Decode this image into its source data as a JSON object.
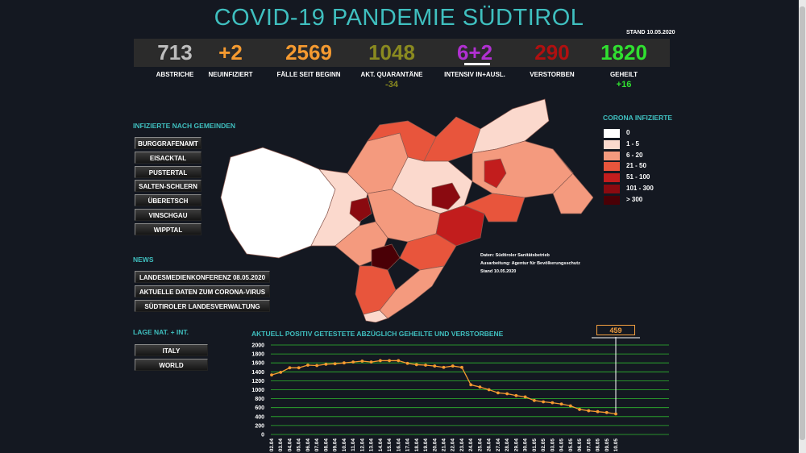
{
  "header": {
    "title": "COVID-19 PANDEMIE SÜDTIROL",
    "stand": "STAND 10.05.2020"
  },
  "stats": [
    {
      "value": "713",
      "label": "ABSTRICHE",
      "sub": "",
      "color": "#bdbdbd"
    },
    {
      "value": "+2",
      "label": "NEUINFIZIERT",
      "sub": "",
      "color": "#f59a30"
    },
    {
      "value": "2569",
      "label": "FÄLLE SEIT BEGINN",
      "sub": "",
      "color": "#f59a30"
    },
    {
      "value": "1048",
      "label": "AKT. QUARANTÄNE",
      "sub": "-34",
      "color": "#8a8a20"
    },
    {
      "value": "6+2",
      "label": "INTENSIV IN+AUSL.",
      "sub": "",
      "color": "#b030d0"
    },
    {
      "value": "290",
      "label": "VERSTORBEN",
      "sub": "",
      "color": "#b01010"
    },
    {
      "value": "1820",
      "label": "GEHEILT",
      "sub": "+16",
      "color": "#30e030"
    }
  ],
  "gemeinden": {
    "heading": "INFIZIERTE NACH GEMEINDEN",
    "buttons": [
      "BURGGRAFENAMT",
      "EISACKTAL",
      "PUSTERTAL",
      "SALTEN-SCHLERN",
      "ÜBERETSCH",
      "VINSCHGAU",
      "WIPPTAL"
    ]
  },
  "news": {
    "heading": "NEWS",
    "buttons": [
      "LANDESMEDIENKONFERENZ  08.05.2020",
      "AKTUELLE DATEN ZUM CORONA-VIRUS",
      "SÜDTIROLER LANDESVERWALTUNG"
    ]
  },
  "lage": {
    "heading": "LAGE NAT. + INT.",
    "buttons": [
      "ITALY",
      "WORLD"
    ]
  },
  "legend": {
    "title": "CORONA INFIZIERTE",
    "items": [
      {
        "label": "0",
        "color": "#ffffff"
      },
      {
        "label": "1 - 5",
        "color": "#fbd9cd"
      },
      {
        "label": "6 - 20",
        "color": "#f49a7e"
      },
      {
        "label": "21 - 50",
        "color": "#e8553c"
      },
      {
        "label": "51 - 100",
        "color": "#c21d1d"
      },
      {
        "label": "101 - 300",
        "color": "#8a0a10"
      },
      {
        "label": "> 300",
        "color": "#4a0006"
      }
    ]
  },
  "credits": [
    "Daten: Südtiroler Sanitätsbetrieb",
    "Ausarbeitung: Agentur für Bevölkerungsschutz",
    "Stand 10.05.2020"
  ],
  "chart_title": "AKTUELL POSITIV GETESTETE ABZÜGLICH GEHEILTE UND VERSTORBENE",
  "callout": "459",
  "colors": {
    "accent": "#3fbfbf",
    "line": "#f59a30",
    "grid": "#2fb82f"
  },
  "chart_data": {
    "type": "line",
    "title": "AKTUELL POSITIV GETESTETE ABZÜGLICH GEHEILTE UND VERSTORBENE",
    "xlabel": "",
    "ylabel": "",
    "ylim": [
      0,
      2000
    ],
    "yticks": [
      0,
      200,
      400,
      600,
      800,
      1000,
      1200,
      1400,
      1600,
      1800,
      2000
    ],
    "grid": true,
    "x": [
      "02.04",
      "03.04",
      "04.04",
      "05.04",
      "06.04",
      "07.04",
      "08.04",
      "09.04",
      "10.04",
      "11.04",
      "12.04",
      "13.04",
      "14.04",
      "15.04",
      "16.04",
      "17.04",
      "18.04",
      "19.04",
      "20.04",
      "21.04",
      "22.04",
      "23.04",
      "24.04",
      "25.04",
      "26.04",
      "27.04",
      "28.04",
      "29.04",
      "30.04",
      "01.05",
      "02.05",
      "03.05",
      "04.05",
      "05.05",
      "06.05",
      "07.05",
      "08.05",
      "09.05",
      "10.05"
    ],
    "series": [
      {
        "values": [
          1330,
          1390,
          1490,
          1490,
          1550,
          1540,
          1570,
          1580,
          1600,
          1620,
          1640,
          1620,
          1650,
          1650,
          1650,
          1590,
          1560,
          1550,
          1530,
          1500,
          1530,
          1500,
          1110,
          1060,
          1000,
          930,
          910,
          870,
          840,
          760,
          730,
          710,
          680,
          640,
          560,
          530,
          510,
          490,
          459
        ]
      }
    ]
  }
}
